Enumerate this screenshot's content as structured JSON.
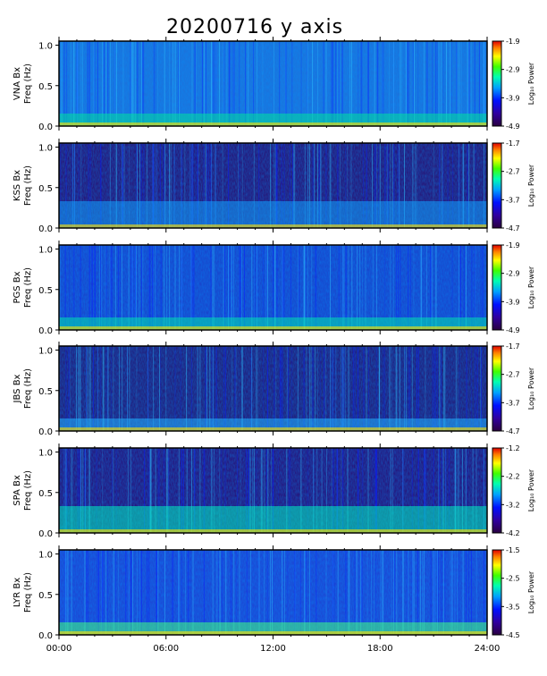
{
  "title": "20200716 y axis",
  "stamp": "",
  "chart_data": [
    {
      "type": "heatmap",
      "station": "VNA",
      "ylabel1": "VNA Bx",
      "ylabel2": "Freq (Hz)",
      "yticks": [
        "0.0",
        "0.5",
        "1.0"
      ],
      "ylim": [
        0,
        1.05
      ],
      "cbar_label": "Log₁₀ Power",
      "cbar_ticks": [
        "-1.9",
        "-2.9",
        "-3.9",
        "-4.9"
      ],
      "crange": [
        -4.9,
        -1.9
      ]
    },
    {
      "type": "heatmap",
      "station": "KSS",
      "ylabel1": "KSS Bx",
      "ylabel2": "Freq (Hz)",
      "yticks": [
        "0.0",
        "0.5",
        "1.0"
      ],
      "ylim": [
        0,
        1.05
      ],
      "cbar_label": "Log₁₀ Power",
      "cbar_ticks": [
        "-1.7",
        "-2.7",
        "-3.7",
        "-4.7"
      ],
      "crange": [
        -4.7,
        -1.7
      ]
    },
    {
      "type": "heatmap",
      "station": "PGS",
      "ylabel1": "PGS Bx",
      "ylabel2": "Freq (Hz)",
      "yticks": [
        "0.0",
        "0.5",
        "1.0"
      ],
      "ylim": [
        0,
        1.05
      ],
      "cbar_label": "Log₁₀ Power",
      "cbar_ticks": [
        "-1.9",
        "-2.9",
        "-3.9",
        "-4.9"
      ],
      "crange": [
        -4.9,
        -1.9
      ]
    },
    {
      "type": "heatmap",
      "station": "JBS",
      "ylabel1": "JBS Bx",
      "ylabel2": "Freq (Hz)",
      "yticks": [
        "0.0",
        "0.5",
        "1.0"
      ],
      "ylim": [
        0,
        1.05
      ],
      "cbar_label": "Log₁₀ Power",
      "cbar_ticks": [
        "-1.7",
        "-2.7",
        "-3.7",
        "-4.7"
      ],
      "crange": [
        -4.7,
        -1.7
      ]
    },
    {
      "type": "heatmap",
      "station": "SPA",
      "ylabel1": "SPA Bx",
      "ylabel2": "Freq (Hz)",
      "yticks": [
        "0.0",
        "0.5",
        "1.0"
      ],
      "ylim": [
        0,
        1.05
      ],
      "cbar_label": "Log₁₀ Power",
      "cbar_ticks": [
        "-1.2",
        "-2.2",
        "-3.2",
        "-4.2"
      ],
      "crange": [
        -4.2,
        -1.2
      ]
    },
    {
      "type": "heatmap",
      "station": "LYR",
      "ylabel1": "LYR Bx",
      "ylabel2": "Freq (Hz)",
      "yticks": [
        "0.0",
        "0.5",
        "1.0"
      ],
      "ylim": [
        0,
        1.05
      ],
      "cbar_label": "Log₁₀ Power",
      "cbar_ticks": [
        "-1.5",
        "-2.5",
        "-3.5",
        "-4.5"
      ],
      "crange": [
        -4.5,
        -1.5
      ]
    }
  ],
  "xticks": [
    "00:00",
    "06:00",
    "12:00",
    "18:00",
    "24:00"
  ],
  "xlim_hours": [
    0,
    24
  ]
}
